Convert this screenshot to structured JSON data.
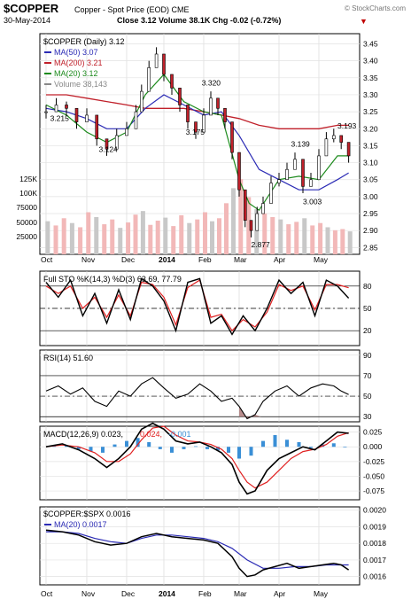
{
  "header": {
    "symbol": "$COPPER",
    "name": "Copper - Spot Price (EOD)",
    "exchange": "CME",
    "watermark": "© StockCharts.com",
    "date": "30-May-2014",
    "close": "Close 3.12",
    "volume": "Volume 38.1K",
    "chg": "Chg -0.02 (-0.72%)",
    "chg_arrow": "▼"
  },
  "colors": {
    "price": "#000000",
    "ma50": "#2b2bb5",
    "ma200": "#c0202a",
    "ma20": "#1c8a1c",
    "volume_up": "#f2b8b8",
    "volume_down": "#c8c8c8",
    "sto_k": "#000000",
    "sto_d": "#e02020",
    "rsi": "#000000",
    "macd": "#000000",
    "signal": "#e02020",
    "hist": "#3a8fd6",
    "ratio": "#000000",
    "ratio_ma": "#2b2bb5",
    "panel_bg": "#ffffff",
    "title_red": "#c00000"
  },
  "x_axis": {
    "months": [
      "Oct",
      "Nov",
      "Dec",
      "2014",
      "Feb",
      "Mar",
      "Apr",
      "May"
    ]
  },
  "chart_data": [
    {
      "type": "line",
      "panel": "price",
      "legend_title": "$COPPER (Daily) 3.12",
      "legend": [
        {
          "label": "MA(50) 3.07",
          "color": "#2b2bb5"
        },
        {
          "label": "MA(200) 3.21",
          "color": "#c0202a"
        },
        {
          "label": "MA(20) 3.12",
          "color": "#1c8a1c"
        },
        {
          "label": "Volume 38,143",
          "color": "#888888"
        }
      ],
      "ylim": [
        2.83,
        3.48
      ],
      "yticks": [
        "3.45",
        "3.40",
        "3.35",
        "3.30",
        "3.25",
        "3.20",
        "3.15",
        "3.10",
        "3.05",
        "3.00",
        "2.95",
        "2.90",
        "2.85"
      ],
      "volume_labels": [
        "125K",
        "100K",
        "75000",
        "50000",
        "25000"
      ],
      "annotations": [
        {
          "text": "3.215",
          "x": 0.1,
          "y": 3.215
        },
        {
          "text": "3.124",
          "x": 1.3,
          "y": 3.124
        },
        {
          "text": "3.320",
          "x": 3.95,
          "y": 3.32
        },
        {
          "text": "3.175",
          "x": 3.55,
          "y": 3.175
        },
        {
          "text": "2.877",
          "x": 5.3,
          "y": 2.877
        },
        {
          "text": "3.139",
          "x": 6.3,
          "y": 3.139
        },
        {
          "text": "3.003",
          "x": 6.6,
          "y": 3.003
        },
        {
          "text": "3.193",
          "x": 7.5,
          "y": 3.193
        }
      ],
      "series": [
        {
          "name": "$COPPER",
          "x": [
            0,
            0.25,
            0.5,
            0.75,
            1,
            1.25,
            1.5,
            1.75,
            2,
            2.25,
            2.4,
            2.6,
            2.8,
            3,
            3.2,
            3.4,
            3.6,
            3.8,
            4,
            4.2,
            4.4,
            4.6,
            4.8,
            5,
            5.15,
            5.3,
            5.45,
            5.6,
            5.8,
            6,
            6.2,
            6.4,
            6.6,
            6.8,
            7,
            7.2,
            7.4,
            7.6,
            7.8
          ],
          "values": [
            3.25,
            3.27,
            3.26,
            3.22,
            3.24,
            3.17,
            3.14,
            3.18,
            3.2,
            3.25,
            3.31,
            3.38,
            3.42,
            3.36,
            3.32,
            3.27,
            3.22,
            3.19,
            3.24,
            3.29,
            3.26,
            3.22,
            3.13,
            3.02,
            2.93,
            2.9,
            2.95,
            2.98,
            3.04,
            3.05,
            3.08,
            3.11,
            3.03,
            3.05,
            3.12,
            3.17,
            3.18,
            3.16,
            3.12
          ]
        },
        {
          "name": "MA(50)",
          "x": [
            0,
            0.5,
            1,
            1.5,
            2,
            2.5,
            3,
            3.5,
            4,
            4.5,
            5,
            5.5,
            6,
            6.5,
            7,
            7.5,
            7.8
          ],
          "values": [
            3.26,
            3.25,
            3.23,
            3.2,
            3.2,
            3.26,
            3.3,
            3.27,
            3.24,
            3.25,
            3.18,
            3.08,
            3.05,
            3.02,
            3.02,
            3.05,
            3.07
          ]
        },
        {
          "name": "MA(200)",
          "x": [
            0,
            0.5,
            1,
            1.5,
            2,
            2.5,
            3,
            3.5,
            4,
            4.5,
            5,
            5.5,
            6,
            6.5,
            7,
            7.5,
            7.8
          ],
          "values": [
            3.3,
            3.3,
            3.29,
            3.28,
            3.27,
            3.26,
            3.26,
            3.26,
            3.25,
            3.24,
            3.23,
            3.21,
            3.2,
            3.2,
            3.2,
            3.21,
            3.21
          ]
        },
        {
          "name": "MA(20)",
          "x": [
            0,
            0.5,
            1,
            1.5,
            2,
            2.5,
            3,
            3.5,
            4,
            4.5,
            5,
            5.25,
            5.5,
            6,
            6.5,
            7,
            7.5,
            7.8
          ],
          "values": [
            3.27,
            3.24,
            3.19,
            3.16,
            3.19,
            3.3,
            3.36,
            3.28,
            3.25,
            3.24,
            3.05,
            2.98,
            2.96,
            3.05,
            3.06,
            3.05,
            3.12,
            3.12
          ]
        }
      ],
      "volume": {
        "x": [
          0.05,
          0.25,
          0.45,
          0.65,
          0.85,
          1.05,
          1.25,
          1.45,
          1.65,
          1.85,
          2.05,
          2.25,
          2.45,
          2.65,
          2.85,
          3.05,
          3.25,
          3.45,
          3.65,
          3.85,
          4.05,
          4.25,
          4.45,
          4.65,
          4.85,
          5.05,
          5.25,
          5.45,
          5.65,
          5.85,
          6.05,
          6.25,
          6.45,
          6.65,
          6.85,
          7.05,
          7.25,
          7.45,
          7.65,
          7.85
        ],
        "values": [
          55000,
          48000,
          60000,
          52000,
          45000,
          70000,
          62000,
          50000,
          58000,
          44000,
          53000,
          66000,
          72000,
          49000,
          56000,
          61000,
          47000,
          65000,
          52000,
          58000,
          70000,
          55000,
          60000,
          85000,
          110000,
          125000,
          95000,
          75000,
          68000,
          62000,
          58000,
          50000,
          54000,
          60000,
          48000,
          52000,
          45000,
          40000,
          42000,
          38143
        ],
        "ymax": 140000
      }
    },
    {
      "type": "line",
      "panel": "sto",
      "legend_title": "Full STO %K(14,3) %D(3) 63.69, 77.79",
      "ylim": [
        0,
        100
      ],
      "yticks": [
        "80",
        "50",
        "20"
      ],
      "series": [
        {
          "name": "%K",
          "x": [
            0,
            0.3,
            0.6,
            0.9,
            1.2,
            1.5,
            1.8,
            2.1,
            2.4,
            2.7,
            3,
            3.3,
            3.6,
            3.9,
            4.2,
            4.5,
            4.8,
            5.1,
            5.4,
            5.7,
            6,
            6.3,
            6.6,
            6.9,
            7.2,
            7.5,
            7.8
          ],
          "values": [
            85,
            65,
            88,
            40,
            70,
            30,
            75,
            35,
            90,
            80,
            60,
            20,
            85,
            90,
            30,
            40,
            15,
            40,
            20,
            50,
            88,
            70,
            85,
            40,
            88,
            80,
            63.69
          ]
        },
        {
          "name": "%D",
          "x": [
            0,
            0.3,
            0.6,
            0.9,
            1.2,
            1.5,
            1.8,
            2.1,
            2.4,
            2.7,
            3,
            3.3,
            3.6,
            3.9,
            4.2,
            4.5,
            4.8,
            5.1,
            5.4,
            5.7,
            6,
            6.3,
            6.6,
            6.9,
            7.2,
            7.5,
            7.8
          ],
          "values": [
            80,
            70,
            80,
            50,
            65,
            38,
            68,
            40,
            85,
            82,
            65,
            28,
            78,
            88,
            38,
            42,
            20,
            35,
            25,
            45,
            82,
            74,
            80,
            48,
            82,
            82,
            77.79
          ]
        }
      ]
    },
    {
      "type": "line",
      "panel": "rsi",
      "legend_title": "RSI(14) 51.60",
      "ylim": [
        25,
        95
      ],
      "yticks": [
        "90",
        "70",
        "50",
        "30"
      ],
      "series": [
        {
          "name": "RSI(14)",
          "x": [
            0,
            0.3,
            0.6,
            0.9,
            1.2,
            1.5,
            1.8,
            2.1,
            2.4,
            2.7,
            3,
            3.3,
            3.6,
            3.9,
            4.2,
            4.5,
            4.8,
            5,
            5.2,
            5.4,
            5.6,
            5.9,
            6.2,
            6.5,
            6.8,
            7.1,
            7.4,
            7.6,
            7.8
          ],
          "values": [
            55,
            60,
            52,
            58,
            45,
            40,
            55,
            50,
            62,
            68,
            58,
            48,
            52,
            62,
            55,
            45,
            48,
            40,
            28,
            32,
            45,
            55,
            60,
            50,
            58,
            62,
            60,
            55,
            51.6
          ]
        }
      ]
    },
    {
      "type": "line",
      "panel": "macd",
      "legend_title": "MACD(12,26,9) 0.023, 0.024, -0.001",
      "ylim": [
        -0.09,
        0.035
      ],
      "yticks": [
        "0.025",
        "0.000",
        "-0.025",
        "-0.050",
        "-0.075"
      ],
      "series": [
        {
          "name": "MACD",
          "x": [
            0,
            0.4,
            0.8,
            1.2,
            1.5,
            1.8,
            2.1,
            2.4,
            2.7,
            3,
            3.3,
            3.6,
            3.9,
            4.2,
            4.5,
            4.8,
            5,
            5.2,
            5.4,
            5.7,
            6,
            6.3,
            6.6,
            6.9,
            7.2,
            7.5,
            7.8
          ],
          "values": [
            0.0,
            0.005,
            -0.005,
            -0.02,
            -0.035,
            -0.02,
            0.0,
            0.03,
            0.04,
            0.03,
            0.01,
            0.005,
            0.008,
            0.0,
            -0.01,
            -0.03,
            -0.06,
            -0.08,
            -0.075,
            -0.04,
            -0.02,
            -0.01,
            0.0,
            -0.005,
            0.01,
            0.025,
            0.023
          ]
        },
        {
          "name": "Signal",
          "x": [
            0,
            0.4,
            0.8,
            1.2,
            1.5,
            1.8,
            2.1,
            2.4,
            2.7,
            3,
            3.3,
            3.6,
            3.9,
            4.2,
            4.5,
            4.8,
            5,
            5.2,
            5.4,
            5.7,
            6,
            6.3,
            6.6,
            6.9,
            7.2,
            7.5,
            7.8
          ],
          "values": [
            0.0,
            0.003,
            0.0,
            -0.01,
            -0.025,
            -0.025,
            -0.012,
            0.012,
            0.032,
            0.035,
            0.02,
            0.01,
            0.008,
            0.004,
            -0.004,
            -0.02,
            -0.04,
            -0.06,
            -0.07,
            -0.06,
            -0.04,
            -0.02,
            -0.008,
            -0.004,
            0.004,
            0.018,
            0.024
          ]
        },
        {
          "name": "Histogram",
          "x": [
            0.2,
            0.5,
            0.8,
            1.1,
            1.4,
            1.7,
            2.0,
            2.3,
            2.6,
            2.9,
            3.2,
            3.5,
            3.8,
            4.1,
            4.4,
            4.7,
            5.0,
            5.3,
            5.6,
            5.9,
            6.2,
            6.5,
            6.8,
            7.1,
            7.4,
            7.7
          ],
          "values": [
            0.003,
            0.002,
            -0.004,
            -0.008,
            -0.01,
            0.004,
            0.01,
            0.015,
            0.008,
            -0.004,
            -0.01,
            -0.004,
            0.001,
            -0.004,
            -0.006,
            -0.01,
            -0.02,
            -0.015,
            0.01,
            0.02,
            0.012,
            0.008,
            -0.002,
            0.004,
            0.006,
            -0.001
          ]
        }
      ]
    },
    {
      "type": "line",
      "panel": "ratio",
      "legend_title": "$COPPER:$SPX 0.0016",
      "legend": [
        {
          "label": "MA(20) 0.0017",
          "color": "#2b2bb5"
        }
      ],
      "ylim": [
        0.00155,
        0.00202
      ],
      "yticks": [
        "0.0020",
        "0.0019",
        "0.0018",
        "0.0017",
        "0.0016"
      ],
      "series": [
        {
          "name": "$COPPER:$SPX",
          "x": [
            0,
            0.4,
            0.8,
            1.2,
            1.6,
            2.0,
            2.4,
            2.8,
            3.2,
            3.6,
            4.0,
            4.4,
            4.8,
            5.0,
            5.2,
            5.4,
            5.6,
            5.9,
            6.2,
            6.5,
            6.8,
            7.1,
            7.4,
            7.6,
            7.8
          ],
          "values": [
            0.00188,
            0.00187,
            0.00185,
            0.00181,
            0.00179,
            0.0018,
            0.00184,
            0.00186,
            0.00184,
            0.00183,
            0.00182,
            0.0018,
            0.00172,
            0.00165,
            0.0016,
            0.00161,
            0.00164,
            0.00166,
            0.00168,
            0.00165,
            0.00166,
            0.00167,
            0.00168,
            0.00167,
            0.00164
          ]
        },
        {
          "name": "MA(20)",
          "x": [
            0,
            0.4,
            0.8,
            1.2,
            1.6,
            2.0,
            2.4,
            2.8,
            3.2,
            3.6,
            4.0,
            4.4,
            4.8,
            5.2,
            5.6,
            6.0,
            6.4,
            6.8,
            7.2,
            7.6,
            7.8
          ],
          "values": [
            0.00187,
            0.00187,
            0.00186,
            0.00183,
            0.00181,
            0.0018,
            0.00183,
            0.00185,
            0.00185,
            0.00184,
            0.00183,
            0.00181,
            0.00177,
            0.0017,
            0.00165,
            0.00165,
            0.00166,
            0.00166,
            0.00167,
            0.00167,
            0.00167
          ]
        }
      ]
    }
  ]
}
